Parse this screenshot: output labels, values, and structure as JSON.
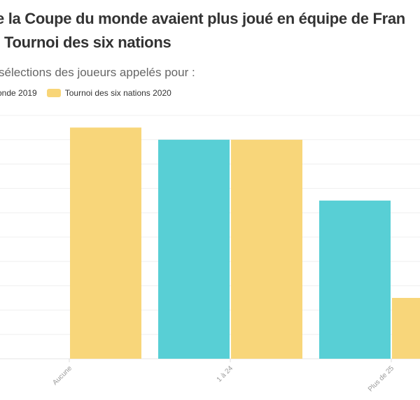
{
  "title_line1": "e la Coupe du monde avaient plus joué en équipe de Fran",
  "title_line2": "Tournoi des six nations",
  "subtitle": "sélections des joueurs appelés pour :",
  "colors": {
    "wc": "#55ced4",
    "sn": "#f8d577"
  },
  "chart_data": {
    "type": "bar",
    "categories": [
      "Aucune",
      "1 à 24",
      "Plus de 25"
    ],
    "series": [
      {
        "name": "onde 2019",
        "values": [
          0,
          18,
          13
        ]
      },
      {
        "name": "Tournoi des six nations 2020",
        "values": [
          19,
          18,
          5
        ]
      }
    ],
    "ylim": [
      0,
      20
    ],
    "grid": true,
    "legend": "top-left"
  }
}
